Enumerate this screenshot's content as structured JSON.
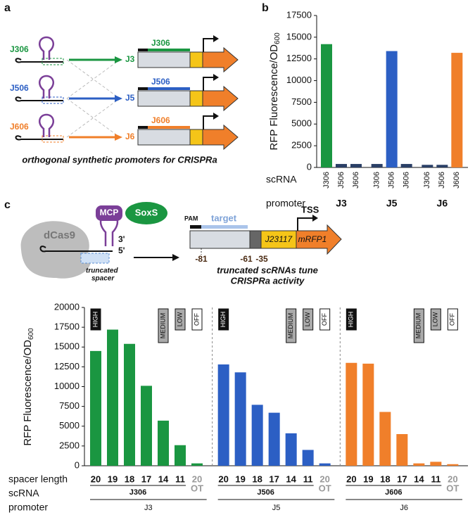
{
  "panel_labels": [
    "a",
    "b",
    "c"
  ],
  "diagram_a": {
    "guides": [
      {
        "name": "J306",
        "promoter": "J3",
        "color": "#1a9641"
      },
      {
        "name": "J506",
        "promoter": "J5",
        "color": "#2c5fc4"
      },
      {
        "name": "J606",
        "promoter": "J6",
        "color": "#f07f2a"
      }
    ],
    "caption": "orthogonal synthetic promoters for CRISPRa"
  },
  "diagram_c": {
    "dcas9": "dCas9",
    "mcp": "MCP",
    "soxs": "SoxS",
    "end3": "3'",
    "end5": "5'",
    "spacer_note": [
      "truncated",
      "spacer"
    ],
    "pam": "PAM",
    "target": "target",
    "tss": "TSS",
    "promoter_part": "J23117",
    "reporter": "mRFP1",
    "positions": [
      "-81",
      "-61",
      "-35"
    ],
    "caption": [
      "truncated scRNAs tune",
      "CRISPRa activity"
    ]
  },
  "chart_data": [
    {
      "type": "bar",
      "ylabel": "RFP Fluorescence/OD",
      "ylabel_sub": "600",
      "row_labels": [
        "scRNA",
        "promoter"
      ],
      "categories": [
        "J306",
        "J506",
        "J606"
      ],
      "groups": [
        {
          "promoter": "J3",
          "values": [
            14200,
            400,
            400
          ],
          "colors": [
            "#1a9641",
            "#2a3f66",
            "#2a3f66"
          ]
        },
        {
          "promoter": "J5",
          "values": [
            400,
            13400,
            400
          ],
          "colors": [
            "#2a3f66",
            "#2c5fc4",
            "#2a3f66"
          ]
        },
        {
          "promoter": "J6",
          "values": [
            300,
            300,
            13200
          ],
          "colors": [
            "#2a3f66",
            "#2a3f66",
            "#f07f2a"
          ]
        }
      ],
      "ylim": [
        0,
        17500
      ],
      "yticks": [
        0,
        2500,
        5000,
        7500,
        10000,
        12500,
        15000,
        17500
      ]
    },
    {
      "type": "bar",
      "ylabel": "RFP Fluorescence/OD",
      "ylabel_sub": "600",
      "row_labels": [
        "spacer length",
        "scRNA",
        "promoter"
      ],
      "categories": [
        "20",
        "19",
        "18",
        "17",
        "14",
        "11",
        "20"
      ],
      "ot_label": "OT",
      "levels": [
        "HIGH",
        "MEDIUM",
        "LOW",
        "OFF"
      ],
      "series": [
        {
          "name": "J306",
          "color": "#1a9641",
          "values": [
            14500,
            17200,
            15400,
            10100,
            5700,
            2600,
            300
          ]
        },
        {
          "name": "J506",
          "color": "#2c5fc4",
          "values": [
            12800,
            11800,
            7700,
            6700,
            4100,
            2000,
            300
          ]
        },
        {
          "name": "J606",
          "color": "#f07f2a",
          "values": [
            13000,
            12900,
            6800,
            4000,
            300,
            500,
            200
          ]
        }
      ],
      "promoters": [
        "J3",
        "J5",
        "J6"
      ],
      "ylim": [
        0,
        20000
      ],
      "yticks": [
        0,
        2500,
        5000,
        7500,
        10000,
        12500,
        15000,
        17500,
        20000
      ]
    }
  ]
}
